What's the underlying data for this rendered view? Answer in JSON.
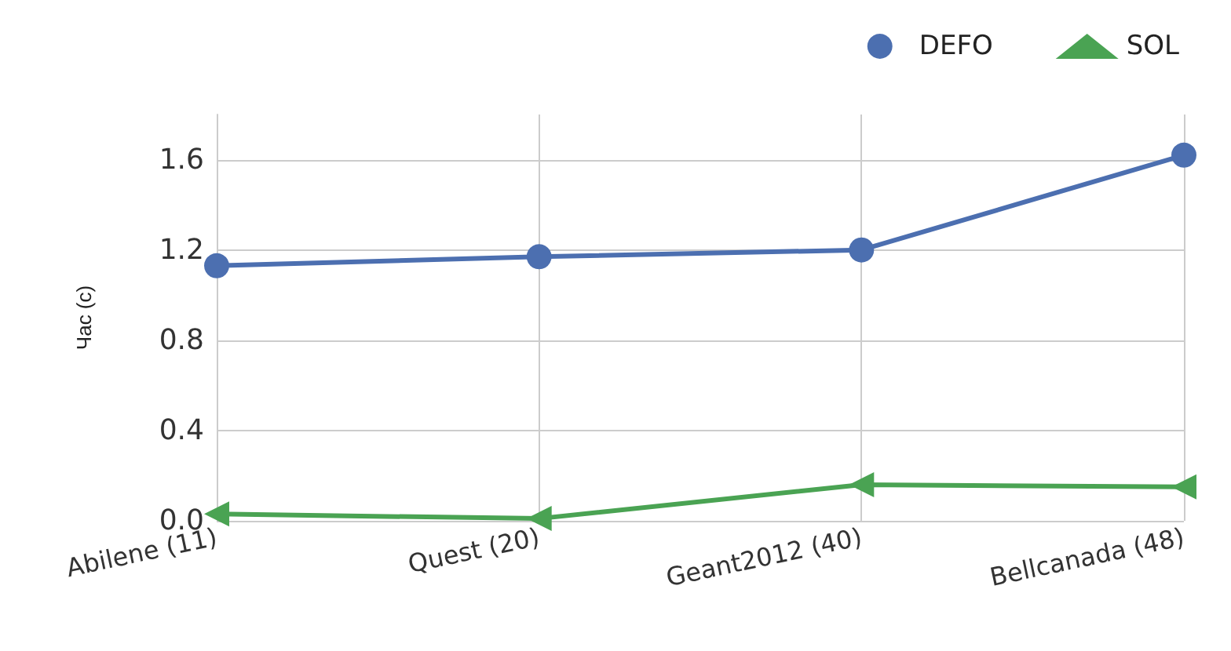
{
  "chart_data": {
    "type": "line",
    "ylabel": "Час (с)",
    "categories": [
      "Abilene (11)",
      "Quest (20)",
      "Geant2012 (40)",
      "Bellcanada (48)"
    ],
    "series": [
      {
        "name": "DEFO",
        "color": "#4c6fb0",
        "marker": "circle",
        "values": [
          1.13,
          1.17,
          1.2,
          1.62
        ]
      },
      {
        "name": "SOL",
        "color": "#4aa353",
        "marker": "triangle",
        "values": [
          0.03,
          0.01,
          0.16,
          0.15
        ]
      }
    ],
    "ylim": [
      0,
      1.8
    ],
    "yticks": [
      {
        "value": 0,
        "label": "0.0"
      },
      0.4,
      0.8,
      {
        "value": 1.2,
        "label": "1.2"
      },
      1.6
    ],
    "grid": true,
    "legend": "top right",
    "line_style": "solid"
  }
}
